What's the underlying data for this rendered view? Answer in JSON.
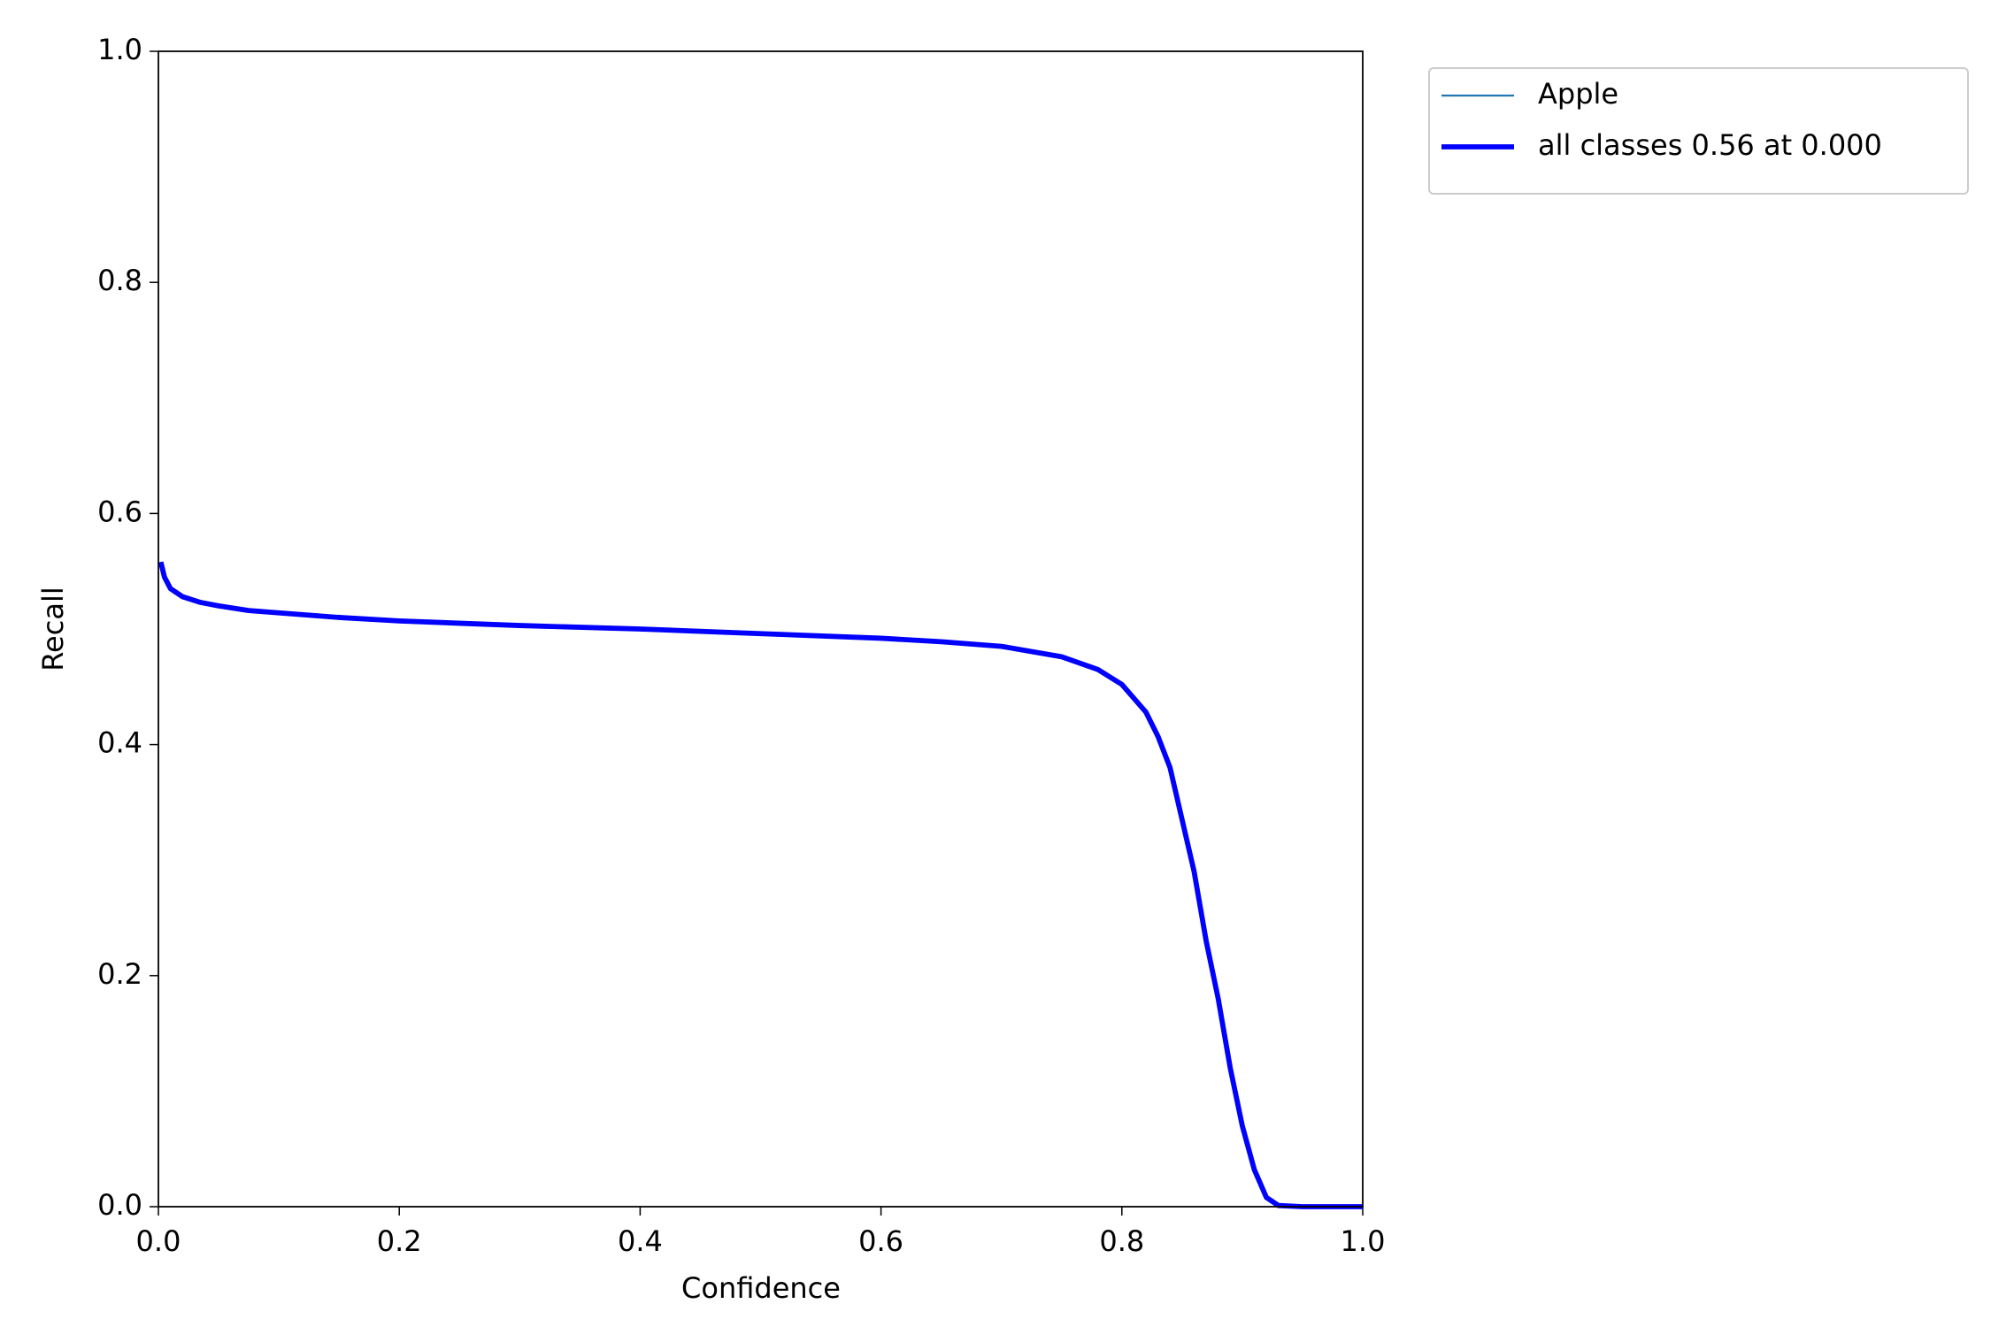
{
  "chart_data": {
    "type": "line",
    "x_label": "Confidence",
    "y_label": "Recall",
    "x": [
      0.002,
      0.005,
      0.01,
      0.02,
      0.035,
      0.05,
      0.075,
      0.1,
      0.15,
      0.2,
      0.3,
      0.4,
      0.5,
      0.6,
      0.65,
      0.7,
      0.75,
      0.78,
      0.8,
      0.82,
      0.83,
      0.84,
      0.85,
      0.86,
      0.87,
      0.88,
      0.89,
      0.9,
      0.91,
      0.92,
      0.93,
      0.95,
      1.0
    ],
    "series": [
      {
        "name": "Apple",
        "color": "#1f77b4",
        "linewidth": 1.5,
        "values": [
          0.558,
          0.545,
          0.535,
          0.528,
          0.523,
          0.52,
          0.516,
          0.514,
          0.51,
          0.507,
          0.503,
          0.5,
          0.496,
          0.492,
          0.489,
          0.485,
          0.476,
          0.465,
          0.452,
          0.428,
          0.407,
          0.38,
          0.335,
          0.29,
          0.23,
          0.18,
          0.12,
          0.07,
          0.032,
          0.008,
          0.001,
          0,
          0
        ]
      },
      {
        "name": "all classes 0.56 at 0.000",
        "color": "#0000ff",
        "linewidth": 4,
        "values": [
          0.558,
          0.545,
          0.535,
          0.528,
          0.523,
          0.52,
          0.516,
          0.514,
          0.51,
          0.507,
          0.503,
          0.5,
          0.496,
          0.492,
          0.489,
          0.485,
          0.476,
          0.465,
          0.452,
          0.428,
          0.407,
          0.38,
          0.335,
          0.29,
          0.23,
          0.18,
          0.12,
          0.07,
          0.032,
          0.008,
          0.001,
          0,
          0
        ]
      }
    ],
    "xlim": [
      0,
      1
    ],
    "ylim": [
      0,
      1
    ],
    "xticks": [
      {
        "value": 0,
        "label": "0.0"
      },
      0.2,
      0.4,
      0.6,
      0.8,
      {
        "value": 1,
        "label": "1.0"
      }
    ],
    "yticks": [
      {
        "value": 0,
        "label": "0.0"
      },
      0.2,
      0.4,
      0.6,
      0.8,
      {
        "value": 1,
        "label": "1.0"
      }
    ],
    "grid": false,
    "legend": "outside upper right"
  }
}
